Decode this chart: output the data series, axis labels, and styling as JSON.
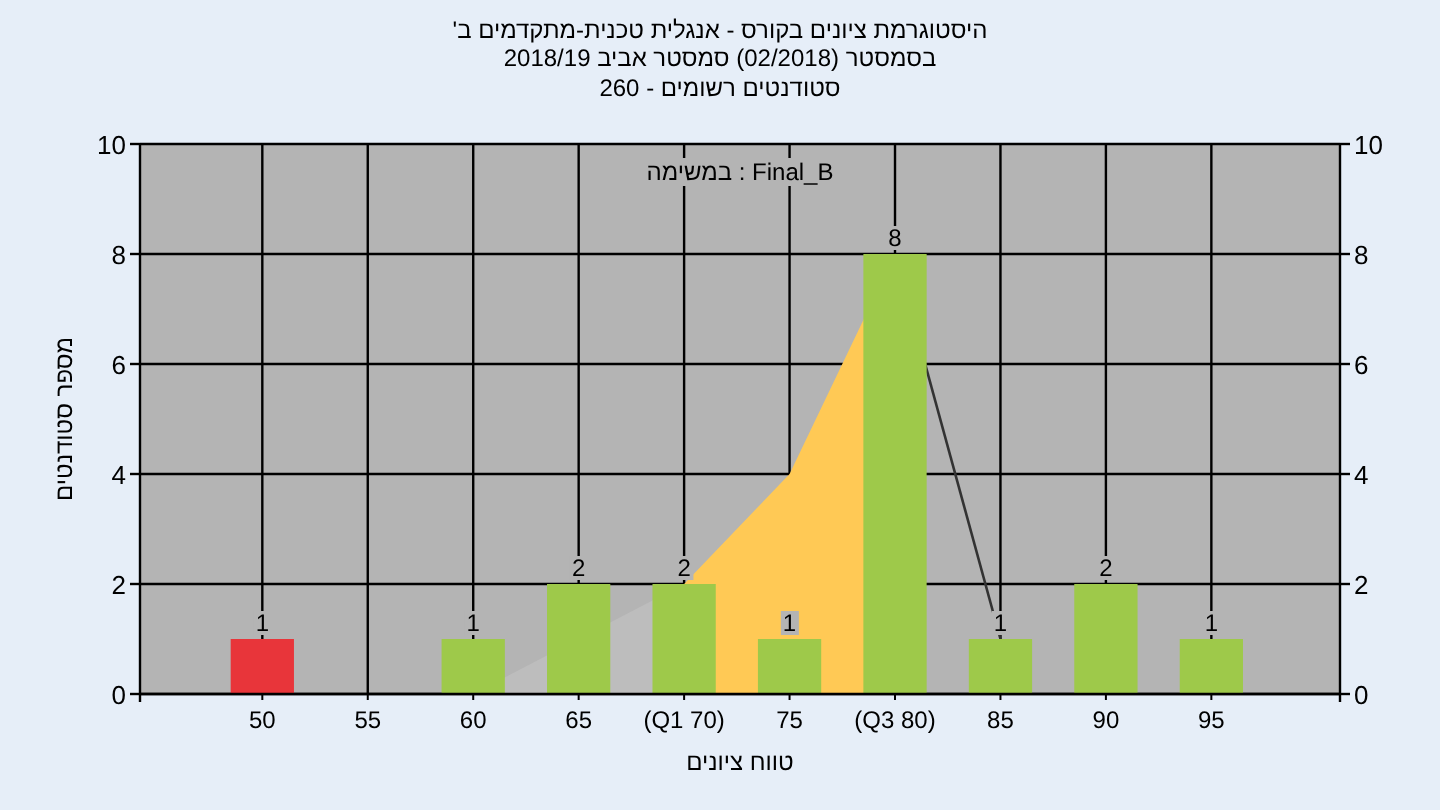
{
  "chart_data": {
    "type": "bar",
    "title": "'היסטוגרמת ציונים בקורס - אנגלית טכנית-מתקדמים ב",
    "subtitle": "בסמסטר  (02/2018)  סמסטר אביב 2018/19",
    "annotations": [
      "סטודנטים רשומים - 260",
      "במשימה : Final_B"
    ],
    "xlabel": "טווח ציונים",
    "ylabel": "מספר סטודנטים",
    "categories": [
      "50",
      "55",
      "60",
      "65",
      "(Q1 70)",
      "75",
      "(Q3 80)",
      "85",
      "90",
      "95"
    ],
    "series": [
      {
        "type": "area",
        "x": [
          "60",
          "(Q1 70)"
        ],
        "values": [
          0,
          2
        ],
        "color": "#bdbdbd"
      },
      {
        "type": "area",
        "x": [
          "(Q1 70)",
          "75",
          "(Q3 80)"
        ],
        "values": [
          2,
          4,
          8
        ],
        "color": "#ffc955"
      },
      {
        "type": "line",
        "x": [
          "(Q3 80)",
          "85"
        ],
        "values": [
          8,
          1
        ],
        "color": "#333333"
      },
      {
        "values": [
          1,
          0,
          1,
          2,
          2,
          1,
          8,
          1,
          2,
          1
        ],
        "colors": [
          "#e8353a",
          "#9ec94a",
          "#9ec94a",
          "#9ec94a",
          "#9ec94a",
          "#9ec94a",
          "#9ec94a",
          "#9ec94a",
          "#9ec94a",
          "#9ec94a"
        ],
        "value_labels": [
          "1",
          null,
          "1",
          "2",
          "2",
          "1",
          "8",
          "1",
          "2",
          "1"
        ]
      }
    ],
    "ylim": [
      0,
      10
    ],
    "yticks": [
      0,
      2,
      4,
      6,
      8,
      10
    ],
    "y2lim": [
      0,
      10
    ],
    "y2ticks": [
      0,
      2,
      4,
      6,
      8,
      10
    ],
    "grid": true
  }
}
